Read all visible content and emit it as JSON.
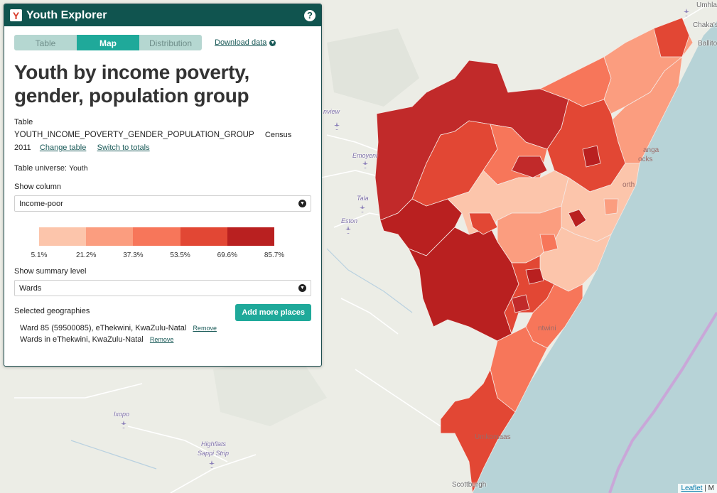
{
  "app": {
    "title": "Youth Explorer",
    "logo_letter": "Y",
    "help": "?"
  },
  "tabs": [
    {
      "label": "Table",
      "active": false
    },
    {
      "label": "Map",
      "active": true
    },
    {
      "label": "Distribution",
      "active": false
    }
  ],
  "download": {
    "label": "Download data",
    "icon": "chevron-down-icon"
  },
  "page_title": "Youth by income poverty, gender, population group",
  "table": {
    "heading": "Table",
    "name": "YOUTH_INCOME_POVERTY_GENDER_POPULATION_GROUP",
    "census": "Census 2011",
    "change_label": "Change table",
    "switch_label": "Switch to totals"
  },
  "universe": {
    "label": "Table universe:",
    "value": "Youth"
  },
  "column": {
    "label": "Show column",
    "value": "Income-poor"
  },
  "legend": {
    "colors": [
      "#fcc5ab",
      "#fb9d7f",
      "#f7765a",
      "#e24734",
      "#b92020"
    ],
    "ticks": [
      "5.1%",
      "21.2%",
      "37.3%",
      "53.5%",
      "69.6%",
      "85.7%"
    ]
  },
  "summary": {
    "label": "Show summary level",
    "value": "Wards"
  },
  "selected": {
    "label": "Selected geographies",
    "add_button": "Add more places",
    "items": [
      {
        "name": "Ward 85 (59500085), eThekwini, KwaZulu-Natal",
        "remove": "Remove"
      },
      {
        "name": "Wards in eThekwini, KwaZulu-Natal",
        "remove": "Remove"
      }
    ]
  },
  "map": {
    "labels": {
      "umhlali": "Umhla",
      "chakas": "Chaka's",
      "ballito": "Ballito",
      "inview": "nview",
      "emoyeni": "Emoyeni",
      "tala": "Tala",
      "eston": "Eston",
      "ixopo": "Ixopo",
      "highflats": "Highflats",
      "sappi": "Sappi Strip",
      "scottburgh": "Scottburgh",
      "ganga": "anga",
      "rocks": "ocks",
      "north": "orth",
      "amanzimtoti": "ntwini",
      "umkomaas": "Umkomaas"
    }
  },
  "attribution": {
    "leaflet": "Leaflet",
    "sep": "| M"
  }
}
